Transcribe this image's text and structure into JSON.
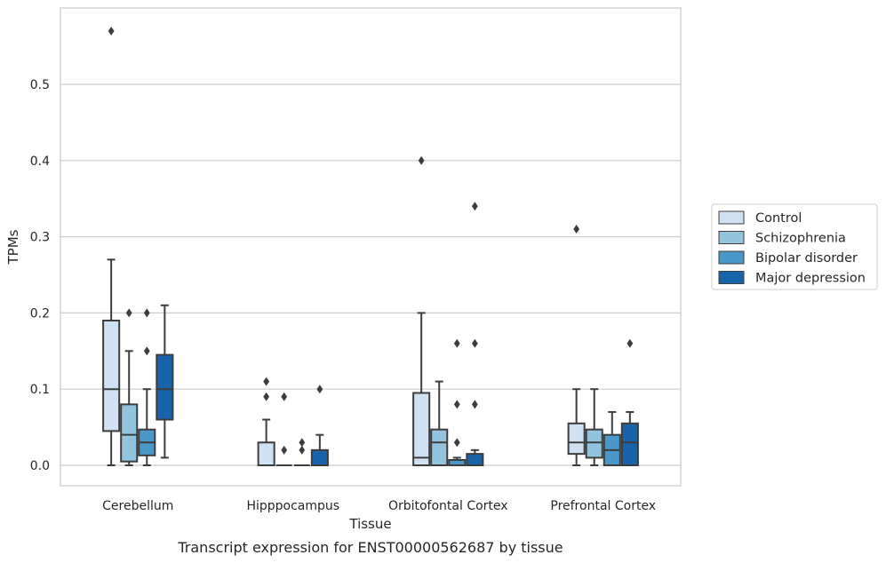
{
  "chart_data": {
    "type": "box",
    "title": "",
    "caption": "Transcript expression for ENST00000562687 by tissue",
    "xlabel": "Tissue",
    "ylabel": "TPMs",
    "ylim": [
      -0.028,
      0.6
    ],
    "yticks": [
      0.0,
      0.1,
      0.2,
      0.3,
      0.4,
      0.5
    ],
    "ytick_labels": [
      "0.0",
      "0.1",
      "0.2",
      "0.3",
      "0.4",
      "0.5"
    ],
    "grid": "horizontal",
    "legend_position": "right",
    "categories": [
      "Cerebellum",
      "Hipppocampus",
      "Orbitofontal Cortex",
      "Prefrontal Cortex"
    ],
    "series": [
      {
        "name": "Control",
        "color": "#cfe1f2",
        "boxes": [
          {
            "whislo": 0.0,
            "q1": 0.045,
            "med": 0.1,
            "q3": 0.19,
            "whishi": 0.27,
            "fliers": [
              0.57
            ]
          },
          {
            "whislo": 0.0,
            "q1": 0.0,
            "med": 0.0,
            "q3": 0.03,
            "whishi": 0.06,
            "fliers": [
              0.09,
              0.11
            ]
          },
          {
            "whislo": 0.0,
            "q1": 0.0,
            "med": 0.01,
            "q3": 0.095,
            "whishi": 0.2,
            "fliers": [
              0.4
            ]
          },
          {
            "whislo": 0.0,
            "q1": 0.015,
            "med": 0.03,
            "q3": 0.055,
            "whishi": 0.1,
            "fliers": [
              0.31
            ]
          }
        ]
      },
      {
        "name": "Schizophrenia",
        "color": "#93c4de",
        "boxes": [
          {
            "whislo": 0.0,
            "q1": 0.005,
            "med": 0.04,
            "q3": 0.08,
            "whishi": 0.15,
            "fliers": [
              0.2
            ]
          },
          {
            "whislo": 0.0,
            "q1": 0.0,
            "med": 0.0,
            "q3": 0.0,
            "whishi": 0.0,
            "fliers": [
              0.02,
              0.09
            ]
          },
          {
            "whislo": 0.0,
            "q1": 0.0,
            "med": 0.03,
            "q3": 0.047,
            "whishi": 0.11,
            "fliers": []
          },
          {
            "whislo": 0.0,
            "q1": 0.01,
            "med": 0.03,
            "q3": 0.047,
            "whishi": 0.1,
            "fliers": []
          }
        ]
      },
      {
        "name": "Bipolar disorder",
        "color": "#4a98c9",
        "boxes": [
          {
            "whislo": 0.0,
            "q1": 0.013,
            "med": 0.03,
            "q3": 0.047,
            "whishi": 0.1,
            "fliers": [
              0.15,
              0.2
            ]
          },
          {
            "whislo": 0.0,
            "q1": 0.0,
            "med": 0.0,
            "q3": 0.0,
            "whishi": 0.0,
            "fliers": [
              0.02,
              0.03
            ]
          },
          {
            "whislo": 0.0,
            "q1": 0.0,
            "med": 0.0,
            "q3": 0.007,
            "whishi": 0.01,
            "fliers": [
              0.03,
              0.08,
              0.16
            ]
          },
          {
            "whislo": 0.0,
            "q1": 0.0,
            "med": 0.02,
            "q3": 0.04,
            "whishi": 0.07,
            "fliers": []
          }
        ]
      },
      {
        "name": "Major depression",
        "color": "#1764ab",
        "boxes": [
          {
            "whislo": 0.01,
            "q1": 0.06,
            "med": 0.1,
            "q3": 0.145,
            "whishi": 0.21,
            "fliers": []
          },
          {
            "whislo": 0.0,
            "q1": 0.0,
            "med": 0.0,
            "q3": 0.02,
            "whishi": 0.04,
            "fliers": [
              0.1
            ]
          },
          {
            "whislo": 0.0,
            "q1": 0.0,
            "med": 0.0,
            "q3": 0.015,
            "whishi": 0.02,
            "fliers": [
              0.08,
              0.16,
              0.34
            ]
          },
          {
            "whislo": 0.0,
            "q1": 0.0,
            "med": 0.03,
            "q3": 0.055,
            "whishi": 0.07,
            "fliers": [
              0.16
            ]
          }
        ]
      }
    ]
  }
}
